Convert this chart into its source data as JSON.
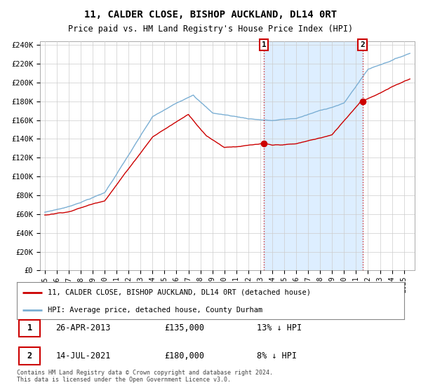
{
  "title": "11, CALDER CLOSE, BISHOP AUCKLAND, DL14 0RT",
  "subtitle": "Price paid vs. HM Land Registry's House Price Index (HPI)",
  "legend_line1": "11, CALDER CLOSE, BISHOP AUCKLAND, DL14 0RT (detached house)",
  "legend_line2": "HPI: Average price, detached house, County Durham",
  "transaction1_date": "26-APR-2013",
  "transaction1_price": "£135,000",
  "transaction1_hpi": "13% ↓ HPI",
  "transaction2_date": "14-JUL-2021",
  "transaction2_price": "£180,000",
  "transaction2_hpi": "8% ↓ HPI",
  "footnote": "Contains HM Land Registry data © Crown copyright and database right 2024.\nThis data is licensed under the Open Government Licence v3.0.",
  "hpi_color": "#7bafd4",
  "price_color": "#cc0000",
  "shade_color": "#ddeeff",
  "ylim_min": 0,
  "ylim_max": 244000,
  "background_color": "#ffffff",
  "grid_color": "#cccccc",
  "t1_year": 2013.3,
  "t1_price": 135000,
  "t2_year": 2021.54,
  "t2_price": 180000
}
